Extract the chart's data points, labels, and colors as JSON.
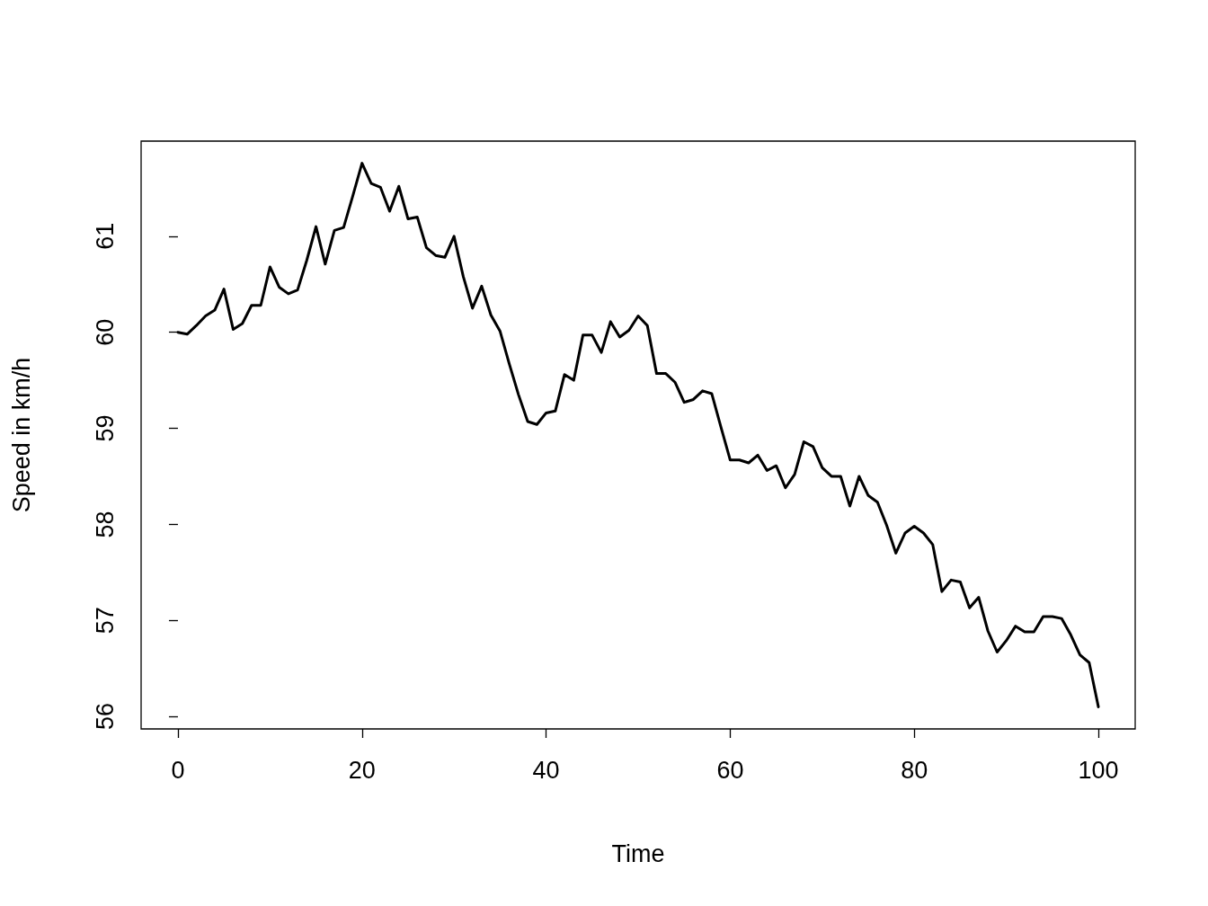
{
  "chart_data": {
    "type": "line",
    "xlabel": "Time",
    "ylabel": "Speed in km/h",
    "x": [
      0,
      1,
      2,
      3,
      4,
      5,
      6,
      7,
      8,
      9,
      10,
      11,
      12,
      13,
      14,
      15,
      16,
      17,
      18,
      19,
      20,
      21,
      22,
      23,
      24,
      25,
      26,
      27,
      28,
      29,
      30,
      31,
      32,
      33,
      34,
      35,
      36,
      37,
      38,
      39,
      40,
      41,
      42,
      43,
      44,
      45,
      46,
      47,
      48,
      49,
      50,
      51,
      52,
      53,
      54,
      55,
      56,
      57,
      58,
      59,
      60,
      61,
      62,
      63,
      64,
      65,
      66,
      67,
      68,
      69,
      70,
      71,
      72,
      73,
      74,
      75,
      76,
      77,
      78,
      79,
      80,
      81,
      82,
      83,
      84,
      85,
      86,
      87,
      88,
      89,
      90,
      91,
      92,
      93,
      94,
      95,
      96,
      97,
      98,
      99,
      100
    ],
    "series": [
      {
        "color": "#000000",
        "values": [
          60.0,
          59.98,
          60.07,
          60.17,
          60.23,
          60.45,
          60.03,
          60.09,
          60.28,
          60.28,
          60.68,
          60.47,
          60.4,
          60.44,
          60.75,
          61.1,
          60.71,
          61.06,
          61.09,
          61.42,
          61.76,
          61.55,
          61.51,
          61.26,
          61.52,
          61.18,
          61.2,
          60.88,
          60.8,
          60.78,
          61.0,
          60.58,
          60.25,
          60.48,
          60.18,
          60.01,
          59.67,
          59.35,
          59.07,
          59.04,
          59.16,
          59.18,
          59.56,
          59.5,
          59.97,
          59.97,
          59.79,
          60.11,
          59.95,
          60.02,
          60.17,
          60.07,
          59.57,
          59.57,
          59.48,
          59.27,
          59.3,
          59.39,
          59.36,
          59.01,
          58.67,
          58.67,
          58.64,
          58.72,
          58.56,
          58.61,
          58.38,
          58.52,
          58.86,
          58.81,
          58.59,
          58.5,
          58.5,
          58.19,
          58.5,
          58.3,
          58.23,
          57.99,
          57.7,
          57.91,
          57.98,
          57.91,
          57.79,
          57.3,
          57.42,
          57.4,
          57.13,
          57.24,
          56.89,
          56.67,
          56.79,
          56.94,
          56.88,
          56.88,
          57.04,
          57.04,
          57.02,
          56.85,
          56.64,
          56.56,
          56.1
        ]
      }
    ],
    "xlim": [
      -4,
      104
    ],
    "xticks": [
      0,
      20,
      40,
      60,
      80,
      100
    ],
    "ylim": [
      55.87,
      61.99
    ],
    "yticks": [
      56,
      57,
      58,
      59,
      60,
      61
    ],
    "grid": false,
    "legend": false,
    "marker": "none",
    "line_style": "solid"
  }
}
